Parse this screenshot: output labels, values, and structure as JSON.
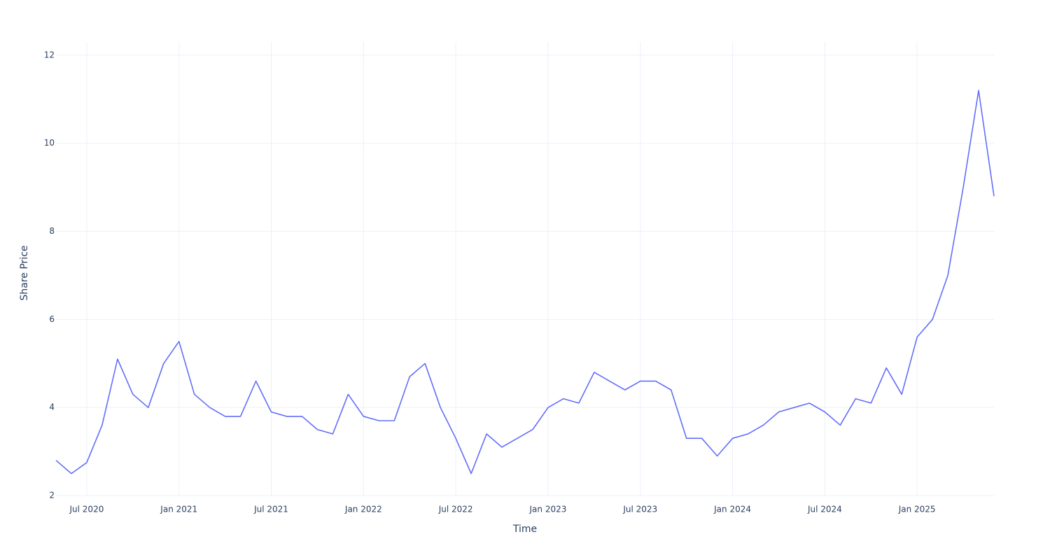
{
  "chart_data": {
    "type": "line",
    "x_label": "Time",
    "y_label": "Share Price",
    "x": [
      "2020-05",
      "2020-06",
      "2020-07",
      "2020-08",
      "2020-09",
      "2020-10",
      "2020-11",
      "2020-12",
      "2021-01",
      "2021-02",
      "2021-03",
      "2021-04",
      "2021-05",
      "2021-06",
      "2021-07",
      "2021-08",
      "2021-09",
      "2021-10",
      "2021-11",
      "2021-12",
      "2022-01",
      "2022-02",
      "2022-03",
      "2022-04",
      "2022-05",
      "2022-06",
      "2022-07",
      "2022-08",
      "2022-09",
      "2022-10",
      "2022-11",
      "2022-12",
      "2023-01",
      "2023-02",
      "2023-03",
      "2023-04",
      "2023-05",
      "2023-06",
      "2023-07",
      "2023-08",
      "2023-09",
      "2023-10",
      "2023-11",
      "2023-12",
      "2024-01",
      "2024-02",
      "2024-03",
      "2024-04",
      "2024-05",
      "2024-06",
      "2024-07",
      "2024-08",
      "2024-09",
      "2024-10",
      "2024-11",
      "2024-12",
      "2025-01",
      "2025-02",
      "2025-03",
      "2025-04",
      "2025-05",
      "2025-06"
    ],
    "values": [
      2.8,
      2.5,
      2.75,
      3.6,
      5.1,
      4.3,
      4.0,
      5.0,
      5.5,
      4.3,
      4.0,
      3.8,
      3.8,
      4.6,
      3.9,
      3.8,
      3.8,
      3.5,
      3.4,
      4.3,
      3.8,
      3.7,
      3.7,
      4.7,
      5.0,
      4.0,
      3.3,
      2.5,
      3.4,
      3.1,
      3.3,
      3.5,
      4.0,
      4.2,
      4.1,
      4.8,
      4.6,
      4.4,
      4.6,
      4.6,
      4.4,
      3.3,
      3.3,
      2.9,
      3.3,
      3.4,
      3.6,
      3.9,
      4.0,
      4.1,
      3.9,
      3.6,
      4.2,
      4.1,
      4.9,
      4.3,
      5.6,
      6.0,
      7.0,
      9.0,
      11.2,
      8.8
    ],
    "color": "#636efa",
    "xlim": [
      "2020-05",
      "2025-06"
    ],
    "xticks": [
      {
        "value": "2020-07",
        "label": "Jul 2020"
      },
      {
        "value": "2021-01",
        "label": "Jan 2021"
      },
      {
        "value": "2021-07",
        "label": "Jul 2021"
      },
      {
        "value": "2022-01",
        "label": "Jan 2022"
      },
      {
        "value": "2022-07",
        "label": "Jul 2022"
      },
      {
        "value": "2023-01",
        "label": "Jan 2023"
      },
      {
        "value": "2023-07",
        "label": "Jul 2023"
      },
      {
        "value": "2024-01",
        "label": "Jan 2024"
      },
      {
        "value": "2024-07",
        "label": "Jul 2024"
      },
      {
        "value": "2025-01",
        "label": "Jan 2025"
      }
    ],
    "ylim": [
      2,
      12.3
    ],
    "yticks": [
      2,
      4,
      6,
      8,
      10,
      12
    ],
    "grid": true
  }
}
